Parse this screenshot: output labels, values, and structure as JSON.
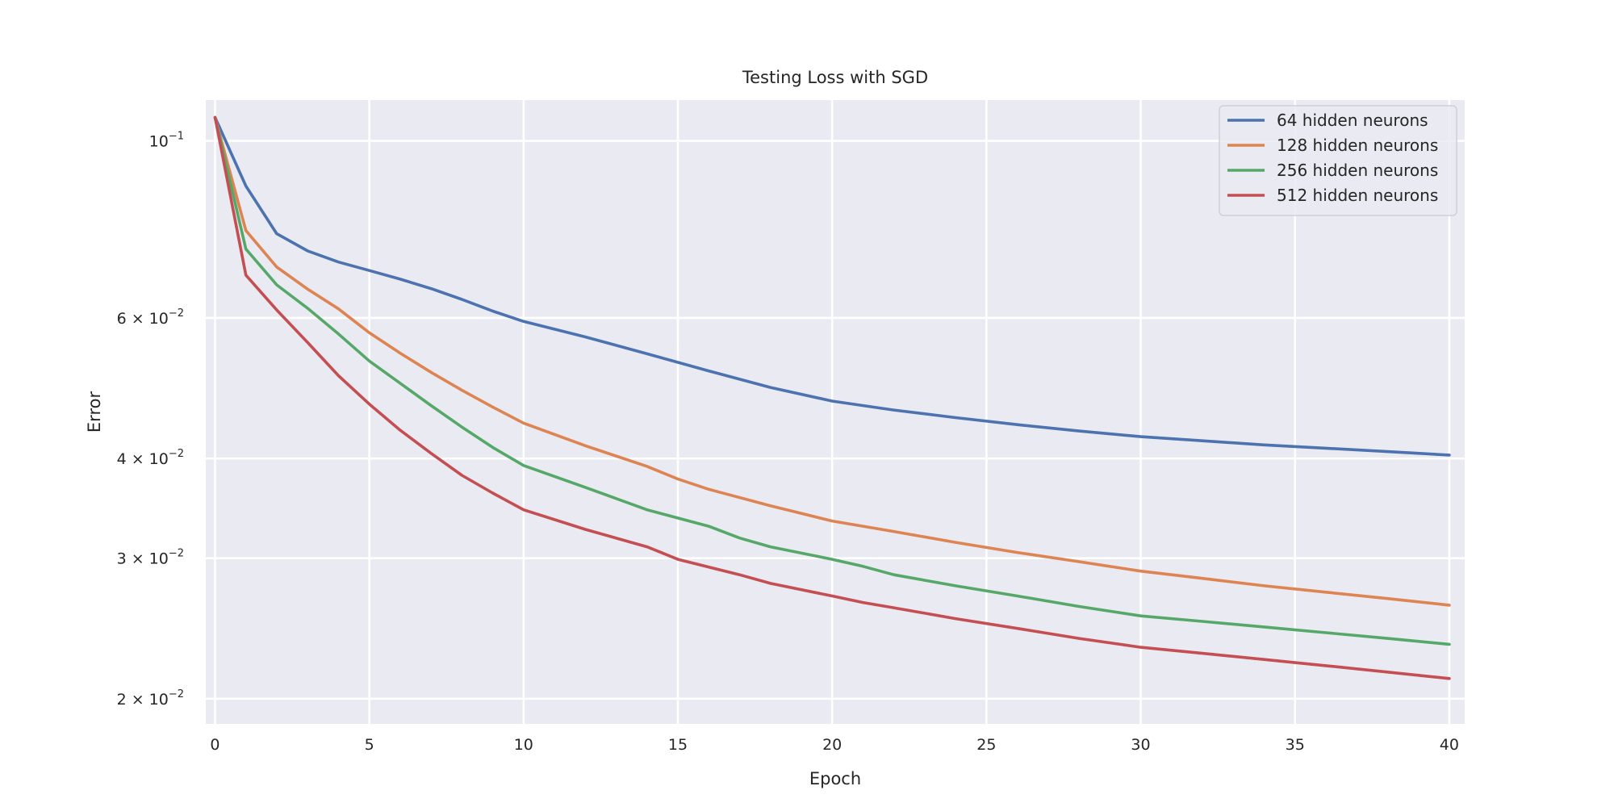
{
  "chart_data": {
    "type": "line",
    "title": "Testing Loss with SGD",
    "xlabel": "Epoch",
    "ylabel": "Error",
    "yscale": "log",
    "xlim": [
      -0.3,
      40.5
    ],
    "ylim": [
      0.0186,
      0.1125
    ],
    "xticks": [
      0,
      5,
      10,
      15,
      20,
      25,
      30,
      35,
      40
    ],
    "yticks": [
      {
        "value": 0.1,
        "label": "10",
        "exp": "−1"
      },
      {
        "value": 0.06,
        "label": "6 × 10",
        "exp": "−2"
      },
      {
        "value": 0.04,
        "label": "4 × 10",
        "exp": "−2"
      },
      {
        "value": 0.03,
        "label": "3 × 10",
        "exp": "−2"
      },
      {
        "value": 0.02,
        "label": "2 × 10",
        "exp": "−2"
      }
    ],
    "grid": true,
    "legend_position": "top-right",
    "background": "#eaeaf2",
    "series": [
      {
        "name": "64 hidden neurons",
        "color": "#4c72b0",
        "x": [
          0,
          1,
          2,
          3,
          4,
          5,
          6,
          7,
          8,
          9,
          10,
          12,
          14,
          16,
          18,
          20,
          22,
          24,
          26,
          28,
          30,
          32,
          34,
          36,
          38,
          40
        ],
        "values": [
          0.107,
          0.0878,
          0.0765,
          0.0728,
          0.0705,
          0.0688,
          0.0671,
          0.0653,
          0.0633,
          0.0612,
          0.0594,
          0.0568,
          0.0541,
          0.0515,
          0.0491,
          0.0472,
          0.046,
          0.045,
          0.0441,
          0.0433,
          0.0426,
          0.0421,
          0.0416,
          0.0412,
          0.0408,
          0.0404
        ]
      },
      {
        "name": "128 hidden neurons",
        "color": "#dd8452",
        "x": [
          0,
          1,
          2,
          3,
          4,
          5,
          6,
          7,
          8,
          9,
          10,
          12,
          14,
          15,
          16,
          18,
          20,
          22,
          24,
          26,
          28,
          30,
          32,
          34,
          36,
          38,
          40
        ],
        "values": [
          0.107,
          0.0772,
          0.0695,
          0.0652,
          0.0616,
          0.0575,
          0.0542,
          0.0513,
          0.0487,
          0.0464,
          0.0443,
          0.0415,
          0.0391,
          0.0377,
          0.0366,
          0.0349,
          0.0334,
          0.0324,
          0.0314,
          0.0305,
          0.0297,
          0.0289,
          0.0283,
          0.0277,
          0.0272,
          0.0267,
          0.0262
        ]
      },
      {
        "name": "256 hidden neurons",
        "color": "#55a868",
        "x": [
          0,
          1,
          2,
          3,
          4,
          5,
          6,
          7,
          8,
          9,
          10,
          12,
          14,
          16,
          17,
          18,
          20,
          21,
          22,
          24,
          26,
          28,
          30,
          32,
          34,
          36,
          38,
          40
        ],
        "values": [
          0.107,
          0.0732,
          0.066,
          0.0617,
          0.0573,
          0.053,
          0.0497,
          0.0466,
          0.0438,
          0.0413,
          0.0392,
          0.0368,
          0.0345,
          0.0329,
          0.0318,
          0.031,
          0.0299,
          0.0293,
          0.0286,
          0.0277,
          0.0269,
          0.0261,
          0.0254,
          0.025,
          0.0246,
          0.0242,
          0.0238,
          0.0234
        ]
      },
      {
        "name": "512 hidden neurons",
        "color": "#c44e52",
        "x": [
          0,
          1,
          2,
          3,
          4,
          5,
          6,
          7,
          8,
          9,
          10,
          12,
          14,
          15,
          17,
          18,
          20,
          21,
          22,
          24,
          26,
          28,
          30,
          32,
          34,
          36,
          38,
          40
        ],
        "values": [
          0.107,
          0.0679,
          0.0614,
          0.0559,
          0.0508,
          0.0468,
          0.0434,
          0.0406,
          0.0381,
          0.0362,
          0.0345,
          0.0326,
          0.031,
          0.0299,
          0.0286,
          0.0279,
          0.0269,
          0.0264,
          0.026,
          0.0252,
          0.0245,
          0.0238,
          0.0232,
          0.0228,
          0.0224,
          0.022,
          0.0216,
          0.0212
        ]
      }
    ]
  }
}
